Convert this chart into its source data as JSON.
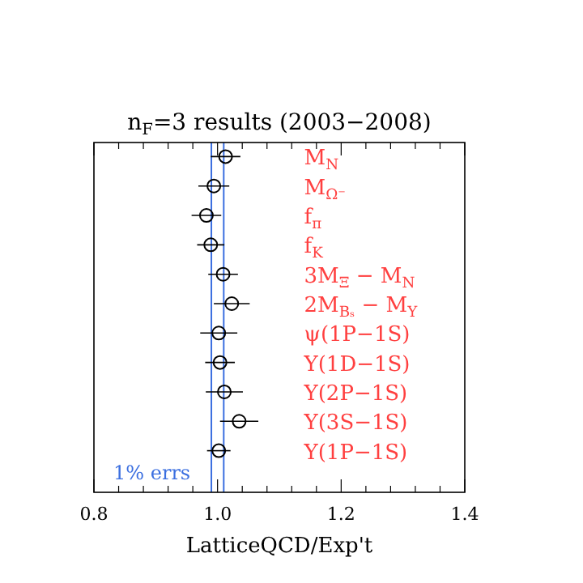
{
  "chart_data": {
    "type": "scatter",
    "orientation": "horizontal",
    "title": "n$_{F}$=3 results (2003−2008)",
    "xlabel": "LatticeQCD/Exp't",
    "categories": [
      "M$_{N}$",
      "M$_{Ω⁻}$",
      "f$_{π}$",
      "f$_{K}$",
      "3M$_{Ξ}$ − M$_{N}$",
      "2M$_{Bₛ}$ − M$_{Υ}$",
      "ψ(1P−1S)",
      "Υ(1D−1S)",
      "Υ(2P−1S)",
      "Υ(3S−1S)",
      "Υ(1P−1S)"
    ],
    "values": [
      1.013,
      0.994,
      0.982,
      0.989,
      1.009,
      1.023,
      1.002,
      1.004,
      1.011,
      1.035,
      1.002
    ],
    "errors": [
      0.024,
      0.025,
      0.024,
      0.022,
      0.024,
      0.029,
      0.03,
      0.024,
      0.03,
      0.031,
      0.019
    ],
    "color": "#000000",
    "marker": "circle",
    "xlim": [
      0.8,
      1.4
    ],
    "xticks": [
      0.8,
      {
        "value": 0.84,
        "label": null
      },
      {
        "value": 0.88,
        "label": null
      },
      {
        "value": 0.92,
        "label": null
      },
      {
        "value": 0.96,
        "label": null
      },
      {
        "value": 1,
        "label": "1.0"
      },
      {
        "value": 1.04,
        "label": null
      },
      {
        "value": 1.08,
        "label": null
      },
      {
        "value": 1.12,
        "label": null
      },
      {
        "value": 1.16,
        "label": null
      },
      1.2,
      {
        "value": 1.24,
        "label": null
      },
      {
        "value": 1.28,
        "label": null
      },
      {
        "value": 1.32,
        "label": null
      },
      {
        "value": 1.36,
        "label": null
      },
      1.4
    ],
    "ref_lines": [
      {
        "axis": "x",
        "value": 0.99,
        "color": "#3b6fe0"
      },
      {
        "axis": "x",
        "value": 1.01,
        "color": "#3b6fe0"
      }
    ],
    "annotations": [
      "1% errs"
    ],
    "grid": false
  }
}
